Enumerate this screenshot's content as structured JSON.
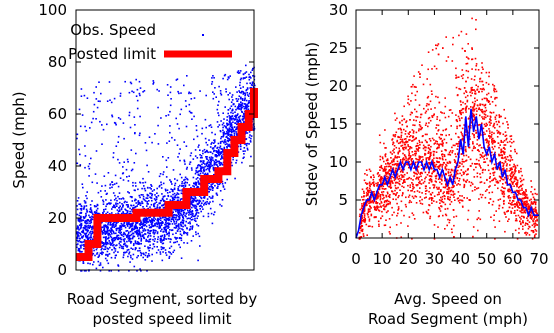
{
  "chart_data": [
    {
      "type": "scatter",
      "xlabel": [
        "Road Segment, sorted by",
        "posted speed limit"
      ],
      "ylabel": "Speed (mph)",
      "ylim": [
        0,
        100
      ],
      "yticks": [
        "0",
        "20",
        "40",
        "60",
        "80",
        "100"
      ],
      "legend": {
        "placement": "top-left"
      },
      "colors": {
        "observed": "#0000ff",
        "posted": "#ff0000"
      },
      "series": [
        {
          "name": "Obs. Speed",
          "style": "points",
          "profile": [
            [
              0.0,
              14
            ],
            [
              0.08,
              14
            ],
            [
              0.16,
              16
            ],
            [
              0.3,
              17
            ],
            [
              0.45,
              19
            ],
            [
              0.55,
              21
            ],
            [
              0.65,
              27
            ],
            [
              0.75,
              37
            ],
            [
              0.82,
              44
            ],
            [
              0.88,
              55
            ],
            [
              0.93,
              58
            ],
            [
              1.0,
              63
            ]
          ],
          "spread_sd": 6.5,
          "upper_outlier_max": 80
        },
        {
          "name": "Posted limit",
          "style": "step",
          "steps": [
            [
              0.0,
              0.07,
              5
            ],
            [
              0.07,
              0.12,
              10
            ],
            [
              0.12,
              0.34,
              20
            ],
            [
              0.34,
              0.52,
              22
            ],
            [
              0.52,
              0.62,
              25
            ],
            [
              0.62,
              0.72,
              30
            ],
            [
              0.72,
              0.8,
              35
            ],
            [
              0.8,
              0.85,
              38
            ],
            [
              0.85,
              0.89,
              45
            ],
            [
              0.89,
              0.93,
              50
            ],
            [
              0.93,
              0.97,
              55
            ],
            [
              0.97,
              1.0,
              60
            ],
            [
              1.0,
              1.0,
              70
            ]
          ]
        }
      ]
    },
    {
      "type": "scatter",
      "xlabel": [
        "Avg. Speed on",
        "Road Segment (mph)"
      ],
      "ylabel": "Stdev of Speed (mph)",
      "xlim": [
        0,
        70
      ],
      "ylim": [
        0,
        30
      ],
      "xticks": [
        "0",
        "10",
        "20",
        "30",
        "40",
        "50",
        "60",
        "70"
      ],
      "yticks": [
        "0",
        "5",
        "10",
        "15",
        "20",
        "25",
        "30"
      ],
      "colors": {
        "points": "#ff0000",
        "trend": "#0000ff"
      },
      "series": [
        {
          "style": "points",
          "color": "#ff0000"
        },
        {
          "style": "line",
          "color": "#0000ff",
          "x": [
            0,
            1,
            2,
            3,
            4,
            5,
            6,
            7,
            8,
            9,
            10,
            11,
            12,
            13,
            14,
            15,
            16,
            17,
            18,
            19,
            20,
            21,
            22,
            23,
            24,
            25,
            26,
            27,
            28,
            29,
            30,
            31,
            32,
            33,
            34,
            35,
            36,
            37,
            38,
            39,
            40,
            41,
            42,
            43,
            44,
            45,
            46,
            47,
            48,
            49,
            50,
            51,
            52,
            53,
            54,
            55,
            56,
            57,
            58,
            59,
            60,
            61,
            62,
            63,
            64,
            65,
            66,
            67,
            68,
            69,
            70
          ],
          "y": [
            0,
            1,
            3,
            4,
            5,
            5,
            6,
            5,
            6,
            7,
            7,
            8,
            7,
            8,
            9,
            8,
            9,
            10,
            9,
            10,
            10,
            9,
            10,
            9,
            10,
            10,
            9,
            10,
            9,
            10,
            9,
            9,
            8,
            9,
            8,
            7,
            8,
            7,
            9,
            10,
            13,
            11,
            16,
            12,
            17,
            14,
            16,
            13,
            15,
            12,
            11,
            12,
            10,
            11,
            9,
            10,
            8,
            9,
            7,
            7,
            6,
            6,
            5,
            5,
            4,
            4,
            3,
            4,
            3,
            3,
            3
          ]
        }
      ]
    }
  ]
}
